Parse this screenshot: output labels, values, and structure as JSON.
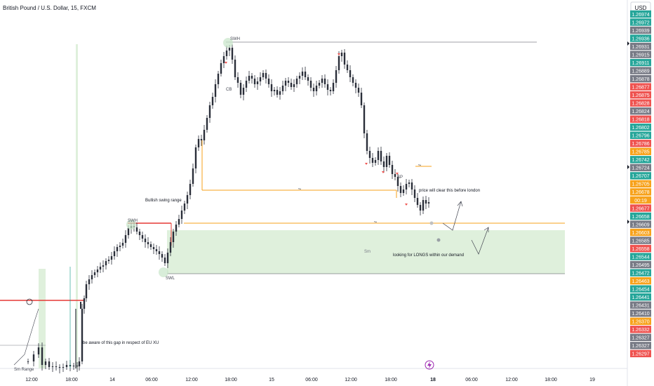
{
  "header": {
    "symbol_title": "British Pound / U.S. Dollar, 15, FXCM",
    "currency_button": "USD"
  },
  "colors": {
    "up": "#26a69a",
    "down": "#ef5350",
    "candle": "#2a2e39",
    "orange": "#f7a21b",
    "red_line": "#e53935",
    "demand_zone": "#dff0dc",
    "swing_marker": "#c8e6c9",
    "wick_up": "#089981",
    "label_grey": "#787b86",
    "label_dark": "#434651"
  },
  "chart_data": {
    "type": "candlestick",
    "instrument": "GBP/USD",
    "timeframe": "15",
    "y_axis_labels": [
      {
        "value": "1.26974",
        "color": "#26a69a"
      },
      {
        "value": "1.26972",
        "color": "#26a69a"
      },
      {
        "value": "1.26939",
        "color": "#787b86"
      },
      {
        "value": "1.26936",
        "color": "#26a69a"
      },
      {
        "value": "1.26931",
        "color": "#787b86"
      },
      {
        "value": "1.26915",
        "color": "#787b86"
      },
      {
        "value": "1.26911",
        "color": "#26a69a"
      },
      {
        "value": "1.26889",
        "color": "#787b86"
      },
      {
        "value": "1.26878",
        "color": "#787b86"
      },
      {
        "value": "1.26877",
        "color": "#ef5350"
      },
      {
        "value": "1.26875",
        "color": "#ef5350"
      },
      {
        "value": "1.26828",
        "color": "#ef5350"
      },
      {
        "value": "1.26824",
        "color": "#787b86"
      },
      {
        "value": "1.26818",
        "color": "#ef5350"
      },
      {
        "value": "1.26802",
        "color": "#26a69a"
      },
      {
        "value": "1.26796",
        "color": "#26a69a"
      },
      {
        "value": "1.26786",
        "color": "#ef5350"
      },
      {
        "value": "1.26785",
        "color": "#f7a21b"
      },
      {
        "value": "1.26742",
        "color": "#26a69a"
      },
      {
        "value": "1.26724",
        "color": "#787b86"
      },
      {
        "value": "1.26707",
        "color": "#26a69a"
      },
      {
        "value": "1.26705",
        "color": "#f7a21b"
      },
      {
        "value": "1.26678",
        "color": "#f7a21b"
      },
      {
        "value": "00:19",
        "color": "#f7a21b"
      },
      {
        "value": "1.26677",
        "color": "#ef5350"
      },
      {
        "value": "1.26658",
        "color": "#26a69a"
      },
      {
        "value": "1.26609",
        "color": "#787b86"
      },
      {
        "value": "1.26603",
        "color": "#f7a21b"
      },
      {
        "value": "1.26585",
        "color": "#787b86"
      },
      {
        "value": "1.26558",
        "color": "#ef5350"
      },
      {
        "value": "1.26544",
        "color": "#26a69a"
      },
      {
        "value": "1.26495",
        "color": "#787b86"
      },
      {
        "value": "1.26472",
        "color": "#26a69a"
      },
      {
        "value": "1.26463",
        "color": "#f7a21b"
      },
      {
        "value": "1.26454",
        "color": "#26a69a"
      },
      {
        "value": "1.26441",
        "color": "#26a69a"
      },
      {
        "value": "1.26431",
        "color": "#787b86"
      },
      {
        "value": "1.26410",
        "color": "#787b86"
      },
      {
        "value": "1.26370",
        "color": "#f7a21b"
      },
      {
        "value": "1.26332",
        "color": "#ef5350"
      },
      {
        "value": "1.26327",
        "color": "#787b86"
      },
      {
        "value": "1.26327",
        "color": "#787b86"
      },
      {
        "value": "1.26297",
        "color": "#ef5350"
      }
    ],
    "x_axis_labels": [
      {
        "label": "12:00",
        "bold": false
      },
      {
        "label": "18:00",
        "bold": false
      },
      {
        "label": "14",
        "bold": false
      },
      {
        "label": "06:00",
        "bold": false
      },
      {
        "label": "12:00",
        "bold": false
      },
      {
        "label": "18:00",
        "bold": false
      },
      {
        "label": "15",
        "bold": false
      },
      {
        "label": "06:00",
        "bold": false
      },
      {
        "label": "12:00",
        "bold": false
      },
      {
        "label": "18:00",
        "bold": false
      },
      {
        "label": "18",
        "bold": true
      },
      {
        "label": "06:00",
        "bold": false
      },
      {
        "label": "12:00",
        "bold": false
      },
      {
        "label": "18:00",
        "bold": false
      },
      {
        "label": "19",
        "bold": false
      }
    ],
    "levels": {
      "swing_high": 1.26936,
      "demand_zone_top": 1.26609,
      "demand_zone_bottom": 1.26495,
      "orange_level": 1.26677,
      "red_level": 1.26454
    },
    "annotations": [
      {
        "id": "swh-top",
        "text": "SWH"
      },
      {
        "id": "swh-left",
        "text": "SWH"
      },
      {
        "id": "swl",
        "text": "SWL"
      },
      {
        "id": "cb",
        "text": "CB"
      },
      {
        "id": "sp",
        "text": "SP"
      },
      {
        "id": "bullish-swing-range",
        "text": "Bullish swing range"
      },
      {
        "id": "price-clear",
        "text": "price will clear this before london"
      },
      {
        "id": "looking-longs",
        "text": "looking for LONGS within our demand"
      },
      {
        "id": "gap-note",
        "text": "be aware of this gap in respect of EU XU"
      },
      {
        "id": "sm-range",
        "text": "Sm Range"
      },
      {
        "id": "sm-zone",
        "text": "Sm"
      }
    ]
  }
}
